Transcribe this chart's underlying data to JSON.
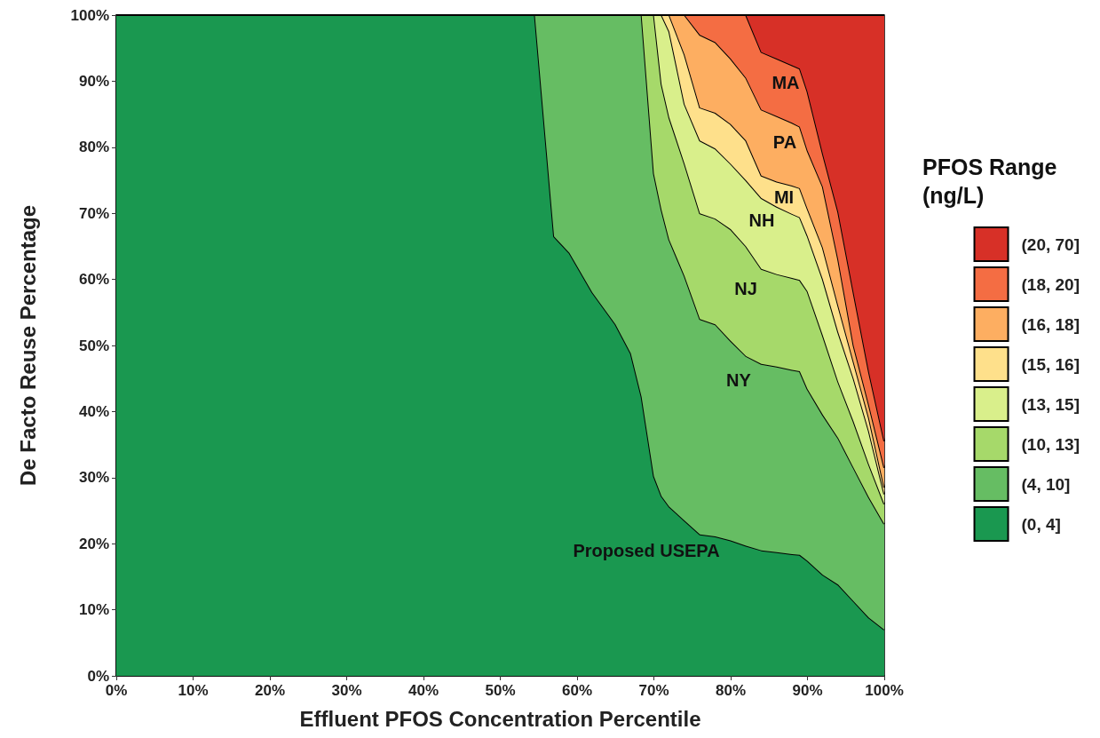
{
  "chart_data": {
    "type": "area",
    "stacked": true,
    "xlabel": "Effluent PFOS Concentration Percentile",
    "ylabel": "De Facto Reuse Percentage",
    "legend_title": "PFOS Range (ng/L)",
    "legend": "right",
    "marker": "none",
    "x": [
      0,
      54.5,
      57,
      59,
      62,
      65,
      67,
      68.4,
      70,
      71,
      72,
      74,
      76,
      78,
      80,
      82,
      84,
      86,
      88,
      89,
      90,
      92,
      94,
      96,
      98,
      100
    ],
    "xlim": [
      0,
      100
    ],
    "ylim": [
      0,
      100
    ],
    "xticks": [
      {
        "value": 0,
        "label": "0%"
      },
      {
        "value": 10,
        "label": "10%"
      },
      {
        "value": 20,
        "label": "20%"
      },
      {
        "value": 30,
        "label": "30%"
      },
      {
        "value": 40,
        "label": "40%"
      },
      {
        "value": 50,
        "label": "50%"
      },
      {
        "value": 60,
        "label": "60%"
      },
      {
        "value": 70,
        "label": "70%"
      },
      {
        "value": 80,
        "label": "80%"
      },
      {
        "value": 90,
        "label": "90%"
      },
      {
        "value": 100,
        "label": "100%"
      }
    ],
    "yticks": [
      {
        "value": 0,
        "label": "0%"
      },
      {
        "value": 10,
        "label": "10%"
      },
      {
        "value": 20,
        "label": "20%"
      },
      {
        "value": 30,
        "label": "30%"
      },
      {
        "value": 40,
        "label": "40%"
      },
      {
        "value": 50,
        "label": "50%"
      },
      {
        "value": 60,
        "label": "60%"
      },
      {
        "value": 70,
        "label": "70%"
      },
      {
        "value": 80,
        "label": "80%"
      },
      {
        "value": 90,
        "label": "90%"
      },
      {
        "value": 100,
        "label": "100%"
      }
    ],
    "series": [
      {
        "name": "(0, 4]",
        "color": "#1a9850",
        "values": [
          100,
          100,
          66.5,
          64,
          58,
          53.2,
          48.8,
          42.2,
          30.2,
          27.2,
          25.6,
          23.5,
          21.4,
          21.1,
          20.5,
          19.7,
          19,
          18.7,
          18.4,
          18.3,
          17.4,
          15.3,
          13.8,
          11.3,
          8.8,
          7
        ]
      },
      {
        "name": "(4, 10]",
        "color": "#66bd63",
        "values": [
          0,
          0,
          33.5,
          36,
          42,
          46.8,
          51.2,
          57.8,
          45.8,
          43.3,
          40.4,
          37,
          32.6,
          32.1,
          30.2,
          28.7,
          28.2,
          28.1,
          27.9,
          27.8,
          26,
          24.2,
          22.2,
          20.2,
          18.2,
          16
        ]
      },
      {
        "name": "(10, 13]",
        "color": "#a6d96a",
        "values": [
          0,
          0,
          0,
          0,
          0,
          0,
          0,
          0,
          24,
          19,
          18.5,
          17,
          16,
          16,
          16.9,
          16.6,
          14.4,
          14,
          13.9,
          13.8,
          14.8,
          12,
          8.5,
          7,
          5,
          3
        ]
      },
      {
        "name": "(13, 15]",
        "color": "#d9ef8b",
        "values": [
          0,
          0,
          0,
          0,
          0,
          0,
          0,
          0,
          0,
          10.5,
          13,
          9,
          11,
          10.6,
          9.9,
          10,
          10.7,
          10.2,
          9.7,
          9.5,
          8.4,
          8.5,
          7.5,
          6.5,
          5,
          1.5
        ]
      },
      {
        "name": "(15, 16]",
        "color": "#fee08b",
        "values": [
          0,
          0,
          0,
          0,
          0,
          0,
          0,
          0,
          0,
          0,
          2.5,
          7.5,
          5,
          5.4,
          6,
          6,
          3.4,
          3.8,
          4.3,
          4.4,
          4.1,
          4.8,
          4,
          2.5,
          2,
          1
        ]
      },
      {
        "name": "(16, 18]",
        "color": "#fdae61",
        "values": [
          0,
          0,
          0,
          0,
          0,
          0,
          0,
          0,
          0,
          0,
          0,
          6,
          11,
          10.7,
          9.9,
          9.5,
          10,
          9.9,
          9.5,
          9.3,
          8.8,
          9.2,
          7,
          2.5,
          2,
          3
        ]
      },
      {
        "name": "(18, 20]",
        "color": "#f46d43",
        "values": [
          0,
          0,
          0,
          0,
          0,
          0,
          0,
          0,
          0,
          0,
          0,
          0,
          3,
          4.1,
          6.6,
          9.5,
          8.7,
          8.7,
          8.7,
          8.8,
          8.9,
          5,
          7.2,
          8,
          5,
          4
        ]
      },
      {
        "name": "(20, 70]",
        "color": "#d73027",
        "values": [
          0,
          0,
          0,
          0,
          0,
          0,
          0,
          0,
          0,
          0,
          0,
          0,
          0,
          0,
          0,
          0,
          5.6,
          6.6,
          7.6,
          8.1,
          11.6,
          21,
          29.8,
          42,
          54,
          64.5
        ]
      }
    ],
    "annotations": [
      "MA",
      "PA",
      "MI",
      "NH",
      "NJ",
      "NY",
      "Proposed USEPA"
    ]
  }
}
